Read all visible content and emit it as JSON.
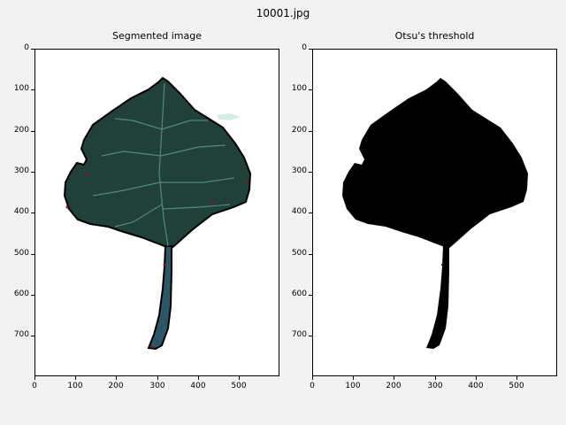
{
  "figure": {
    "title": "10001.jpg"
  },
  "panels": [
    {
      "title": "Segmented image",
      "image": "leaf-segmented",
      "colors": {
        "leaf": "#22403a",
        "vein": "#4f8a7e",
        "outline": "#000000",
        "background": "#ffffff"
      }
    },
    {
      "title": "Otsu's threshold",
      "image": "leaf-binary-mask",
      "colors": {
        "leaf": "#000000",
        "background": "#ffffff"
      }
    }
  ],
  "axes": {
    "x_ticks": [
      "0",
      "100",
      "200",
      "300",
      "400",
      "500"
    ],
    "y_ticks": [
      "0",
      "100",
      "200",
      "300",
      "400",
      "500",
      "600",
      "700"
    ]
  }
}
